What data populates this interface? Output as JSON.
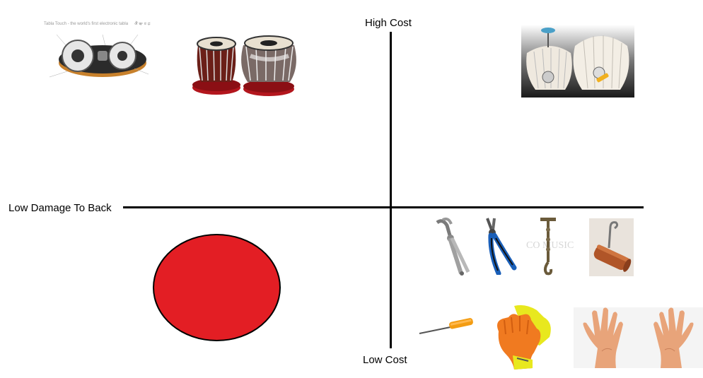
{
  "axes": {
    "y_top_label": "High Cost",
    "y_bottom_label": "Low Cost",
    "x_left_label": "Low Damage To Back"
  },
  "items": {
    "tabla_touch": {
      "title": "Tabla Touch - the world's first electronic tabla",
      "icon": "electronic-tabla-icon"
    },
    "tabla_set": {
      "icon": "tabla-drums-icon"
    },
    "hydraulic_tabla": {
      "icon": "hydraulic-tabla-icon"
    },
    "locking_pliers": {
      "icon": "locking-pliers-icon"
    },
    "combination_pliers": {
      "icon": "pliers-icon"
    },
    "tuning_hammer": {
      "icon": "tuning-hammer-icon",
      "watermark": "CO MUSIC"
    },
    "wooden_hook_tool": {
      "icon": "hook-tool-icon"
    },
    "screwdriver": {
      "icon": "screwdriver-icon"
    },
    "gloves": {
      "icon": "gloves-icon"
    },
    "hands": {
      "icon": "hands-icon"
    }
  },
  "colors": {
    "marker": "#e31e24",
    "axis": "#000000"
  }
}
